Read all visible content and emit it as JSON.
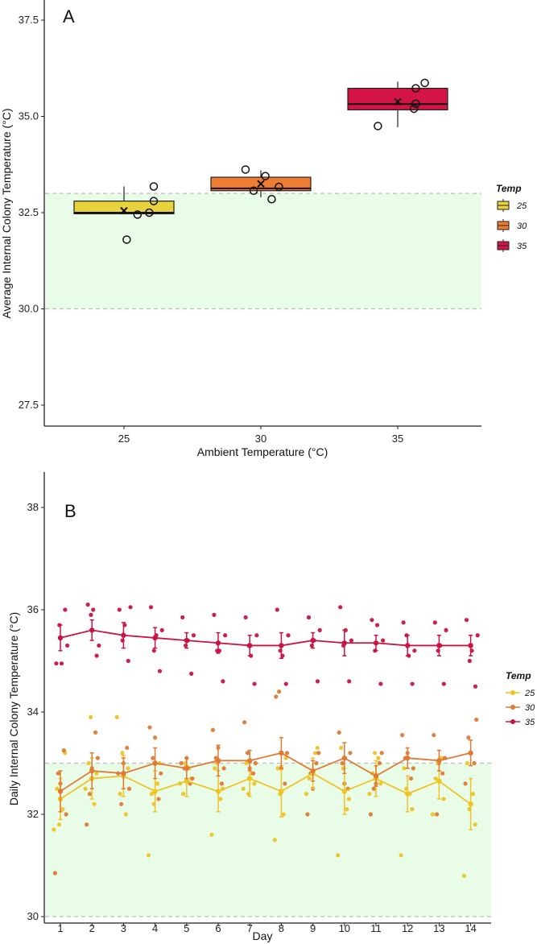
{
  "colors": {
    "c25": "#e8d33c",
    "c30": "#ef7c33",
    "c35": "#d51446",
    "l25": "#eec326",
    "l30": "#e07a34",
    "l35": "#c81445",
    "band": "#e8fce8",
    "bandline": "#bdbdbd"
  },
  "chart_data": [
    {
      "type": "box",
      "panel": "A",
      "xlabel": "Ambient Temperature (°C)",
      "ylabel": "Average Internal Colony Temperature (°C)",
      "ylim": [
        26.8,
        37.8
      ],
      "yticks": [
        "27.5",
        "30.0",
        "32.5",
        "35.0",
        "37.5"
      ],
      "categories": [
        "25",
        "30",
        "35"
      ],
      "shaded_band": [
        30.0,
        33.0
      ],
      "legend": {
        "title": "Temp",
        "entries": [
          "25",
          "30",
          "35"
        ]
      },
      "boxes": [
        {
          "name": "25",
          "q1": 32.47,
          "median": 32.5,
          "q3": 32.8,
          "whisker_low": 32.47,
          "whisker_high": 33.18,
          "mean": 32.55,
          "points": [
            [
              0.15,
              32.45
            ],
            [
              0.28,
              32.5
            ],
            [
              0.03,
              31.8
            ],
            [
              0.33,
              32.8
            ],
            [
              0.33,
              33.18
            ]
          ]
        },
        {
          "name": "30",
          "q1": 33.07,
          "median": 33.13,
          "q3": 33.42,
          "whisker_low": 32.9,
          "whisker_high": 33.6,
          "mean": 33.25,
          "points": [
            [
              -0.17,
              33.62
            ],
            [
              -0.08,
              33.07
            ],
            [
              0.05,
              33.45
            ],
            [
              0.12,
              32.85
            ],
            [
              0.2,
              33.17
            ]
          ]
        },
        {
          "name": "35",
          "q1": 35.17,
          "median": 35.32,
          "q3": 35.73,
          "whisker_low": 34.72,
          "whisker_high": 35.9,
          "mean": 35.38,
          "points": [
            [
              -0.22,
              34.75
            ],
            [
              0.18,
              35.2
            ],
            [
              0.2,
              35.33
            ],
            [
              0.2,
              35.73
            ],
            [
              0.3,
              35.87
            ]
          ]
        }
      ]
    },
    {
      "type": "line",
      "panel": "B",
      "xlabel": "Day",
      "ylabel": "Daily Internal Colony Temperature (°C)",
      "ylim": [
        29.8,
        38.4
      ],
      "yticks": [
        "30",
        "32",
        "34",
        "36",
        "38"
      ],
      "x": [
        1,
        2,
        3,
        4,
        5,
        6,
        7,
        8,
        9,
        10,
        11,
        12,
        13,
        14
      ],
      "shaded_band": [
        30.0,
        33.0
      ],
      "legend": {
        "title": "Temp",
        "entries": [
          "25",
          "30",
          "35"
        ]
      },
      "series": [
        {
          "name": "25",
          "values": [
            32.3,
            32.7,
            32.75,
            32.45,
            32.65,
            32.45,
            32.7,
            32.45,
            32.8,
            32.45,
            32.7,
            32.4,
            32.65,
            32.2
          ],
          "errors": [
            0.4,
            0.4,
            0.4,
            0.4,
            0.3,
            0.4,
            0.35,
            0.5,
            0.3,
            0.45,
            0.35,
            0.35,
            0.35,
            0.5
          ],
          "points": [
            [
              31.7,
              32.1,
              32.5,
              33.2,
              31.8
            ],
            [
              32.5,
              32.2,
              33.0,
              32.8,
              33.9
            ],
            [
              33.9,
              32.0,
              32.4,
              32.9,
              33.2
            ],
            [
              31.2,
              32.6,
              32.4,
              33.0,
              32.2
            ],
            [
              32.6,
              32.9,
              32.4,
              32.7,
              33.0
            ],
            [
              31.6,
              32.3,
              32.9,
              32.5,
              33.0
            ],
            [
              32.5,
              32.8,
              33.0,
              32.6,
              32.4
            ],
            [
              31.5,
              32.0,
              32.9,
              33.1,
              32.4
            ],
            [
              32.4,
              33.2,
              32.7,
              33.3,
              32.8
            ],
            [
              31.2,
              32.1,
              33.3,
              32.3,
              32.9
            ],
            [
              32.4,
              33.1,
              32.8,
              32.6,
              33.2
            ],
            [
              31.2,
              32.4,
              32.9,
              32.1,
              32.5
            ],
            [
              32.0,
              33.1,
              32.7,
              32.3,
              33.0
            ],
            [
              30.8,
              32.4,
              33.0,
              31.8,
              32.1
            ]
          ]
        },
        {
          "name": "30",
          "values": [
            32.45,
            32.85,
            32.8,
            33.0,
            32.9,
            33.05,
            33.05,
            33.2,
            32.85,
            33.1,
            32.75,
            33.1,
            33.05,
            33.2
          ],
          "errors": [
            0.4,
            0.35,
            0.3,
            0.3,
            0.2,
            0.3,
            0.2,
            0.3,
            0.2,
            0.3,
            0.2,
            0.2,
            0.2,
            0.25
          ],
          "points": [
            [
              30.85,
              33.25,
              32.8,
              32.0,
              32.6
            ],
            [
              31.8,
              33.6,
              32.4,
              33.1,
              32.9
            ],
            [
              32.8,
              33.3,
              32.2,
              32.5,
              33.0
            ],
            [
              33.7,
              32.3,
              33.1,
              32.8,
              33.5
            ],
            [
              33.0,
              32.6,
              32.9,
              32.7,
              33.1
            ],
            [
              33.65,
              32.6,
              33.1,
              32.9,
              33.3
            ],
            [
              33.8,
              32.8,
              33.2,
              33.0,
              32.9
            ],
            [
              34.3,
              32.6,
              34.4,
              33.2,
              32.9
            ],
            [
              32.0,
              33.0,
              32.8,
              33.2,
              32.5
            ],
            [
              33.6,
              32.5,
              33.0,
              33.2,
              32.6
            ],
            [
              32.0,
              33.0,
              32.5,
              33.2,
              32.6
            ],
            [
              33.55,
              32.7,
              33.1,
              32.9,
              33.2
            ],
            [
              33.55,
              32.8,
              32.0,
              33.1,
              33.0
            ],
            [
              32.6,
              33.0,
              33.5,
              33.85,
              33.2
            ]
          ]
        },
        {
          "name": "35",
          "values": [
            35.45,
            35.6,
            35.5,
            35.45,
            35.4,
            35.35,
            35.3,
            35.3,
            35.4,
            35.35,
            35.35,
            35.3,
            35.3,
            35.3
          ],
          "errors": [
            0.25,
            0.2,
            0.25,
            0.2,
            0.15,
            0.2,
            0.2,
            0.25,
            0.15,
            0.25,
            0.15,
            0.2,
            0.2,
            0.2
          ],
          "points": [
            [
              34.95,
              36.0,
              35.7,
              35.3,
              34.95
            ],
            [
              36.1,
              35.1,
              35.9,
              35.3,
              36.0
            ],
            [
              36.0,
              35.0,
              35.4,
              36.05,
              35.7
            ],
            [
              36.05,
              34.8,
              35.2,
              35.6,
              35.5
            ],
            [
              35.85,
              34.75,
              35.3,
              35.5,
              35.4
            ],
            [
              35.9,
              34.6,
              35.2,
              35.5,
              35.2
            ],
            [
              35.85,
              34.55,
              35.3,
              35.5,
              35.1
            ],
            [
              36.0,
              34.55,
              35.2,
              35.5,
              35.1
            ],
            [
              35.85,
              34.6,
              35.3,
              35.6,
              35.4
            ],
            [
              36.05,
              34.6,
              35.3,
              35.4,
              35.6
            ],
            [
              35.8,
              34.55,
              35.2,
              35.4,
              35.7
            ],
            [
              35.75,
              34.55,
              35.5,
              35.2,
              35.1
            ],
            [
              35.75,
              34.55,
              35.2,
              35.6,
              35.3
            ],
            [
              35.8,
              34.5,
              35.0,
              35.5,
              35.2
            ]
          ]
        }
      ]
    }
  ]
}
